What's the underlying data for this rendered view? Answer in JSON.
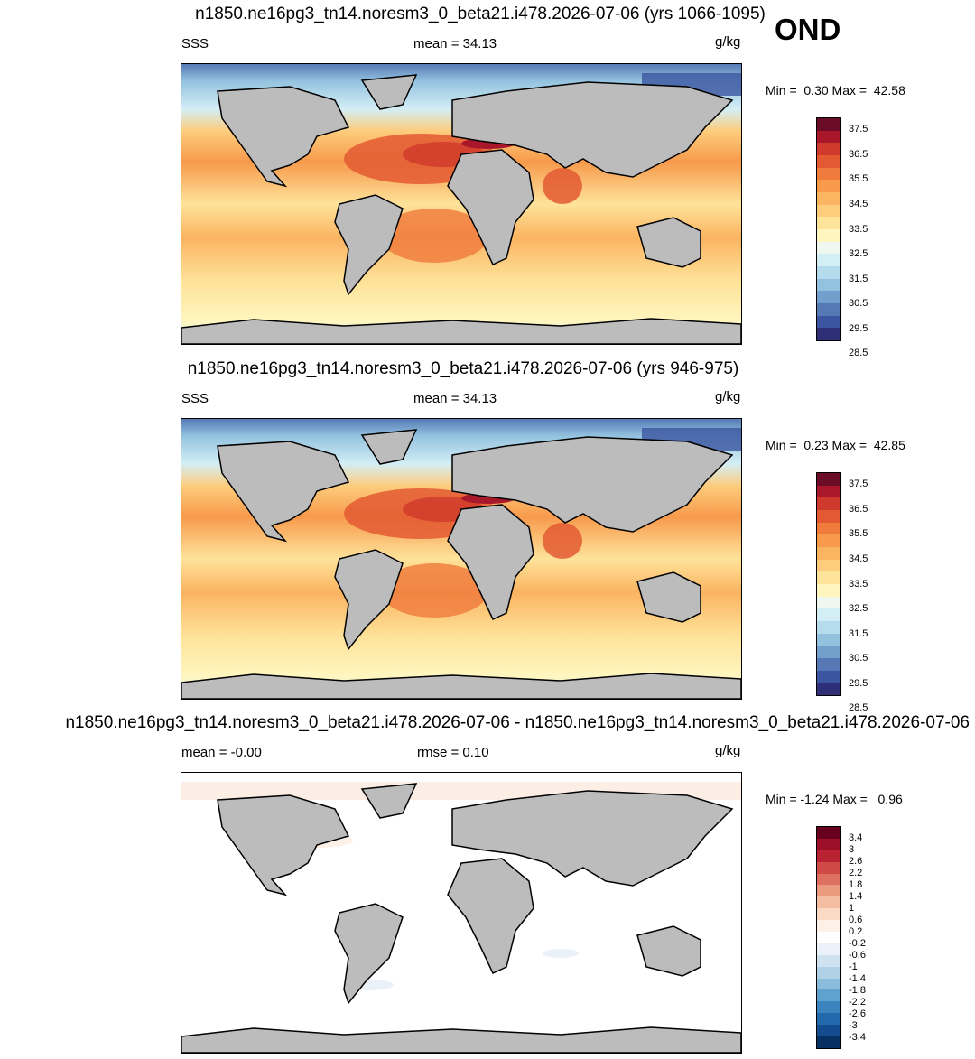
{
  "season": "OND",
  "units": "g/kg",
  "land_color": "#bcbcbc",
  "panels": [
    {
      "title": "n1850.ne16pg3_tn14.noresm3_0_beta21.i478.2026-07-06 (yrs 1066-1095)",
      "left_label": "SSS",
      "center_label": "mean =  34.13",
      "min_label": "Min =",
      "min_value": "0.30",
      "max_label": "Max =",
      "max_value": "42.58"
    },
    {
      "title": "n1850.ne16pg3_tn14.noresm3_0_beta21.i478.2026-07-06 (yrs 946-975)",
      "left_label": "SSS",
      "center_label": "mean =  34.13",
      "min_label": "Min =",
      "min_value": "0.23",
      "max_label": "Max =",
      "max_value": "42.85"
    },
    {
      "title": "n1850.ne16pg3_tn14.noresm3_0_beta21.i478.2026-07-06 - n1850.ne16pg3_tn14.noresm3_0_beta21.i478.2026-07-06",
      "left_label": "mean =  -0.00",
      "center_label": "rmse =   0.10",
      "min_label": "Min =",
      "min_value": "-1.24",
      "max_label": "Max =",
      "max_value": "0.96"
    }
  ],
  "colorbar_sss": {
    "colors": [
      "#6b0d26",
      "#a8172a",
      "#cf3a2c",
      "#e35a32",
      "#ef7b3c",
      "#f79a4c",
      "#fbb461",
      "#fdcc7c",
      "#fee39a",
      "#fff6bf",
      "#eef8f0",
      "#d3eef5",
      "#b4dcec",
      "#93c2df",
      "#739fcc",
      "#5679b6",
      "#3b55a0",
      "#2f2f78"
    ],
    "tick_labels": [
      "37.5",
      "36.5",
      "35.5",
      "34.5",
      "33.5",
      "32.5",
      "31.5",
      "30.5",
      "29.5",
      "28.5"
    ]
  },
  "colorbar_diff": {
    "colors": [
      "#67001f",
      "#9b1026",
      "#b82232",
      "#cd4a47",
      "#dd7060",
      "#ec9a7d",
      "#f5bda1",
      "#fbdac5",
      "#fdf0e6",
      "#ffffff",
      "#eaf1f8",
      "#cfe2ef",
      "#b0d0e6",
      "#8bbcdc",
      "#5fa1cf",
      "#3b85bf",
      "#2369ac",
      "#134d8f",
      "#053061"
    ],
    "tick_labels": [
      "3.4",
      "3",
      "2.6",
      "2.2",
      "1.8",
      "1.4",
      "1",
      "0.6",
      "0.2",
      "-0.2",
      "-0.6",
      "-1",
      "-1.4",
      "-1.8",
      "-2.2",
      "-2.6",
      "-3",
      "-3.4"
    ]
  }
}
